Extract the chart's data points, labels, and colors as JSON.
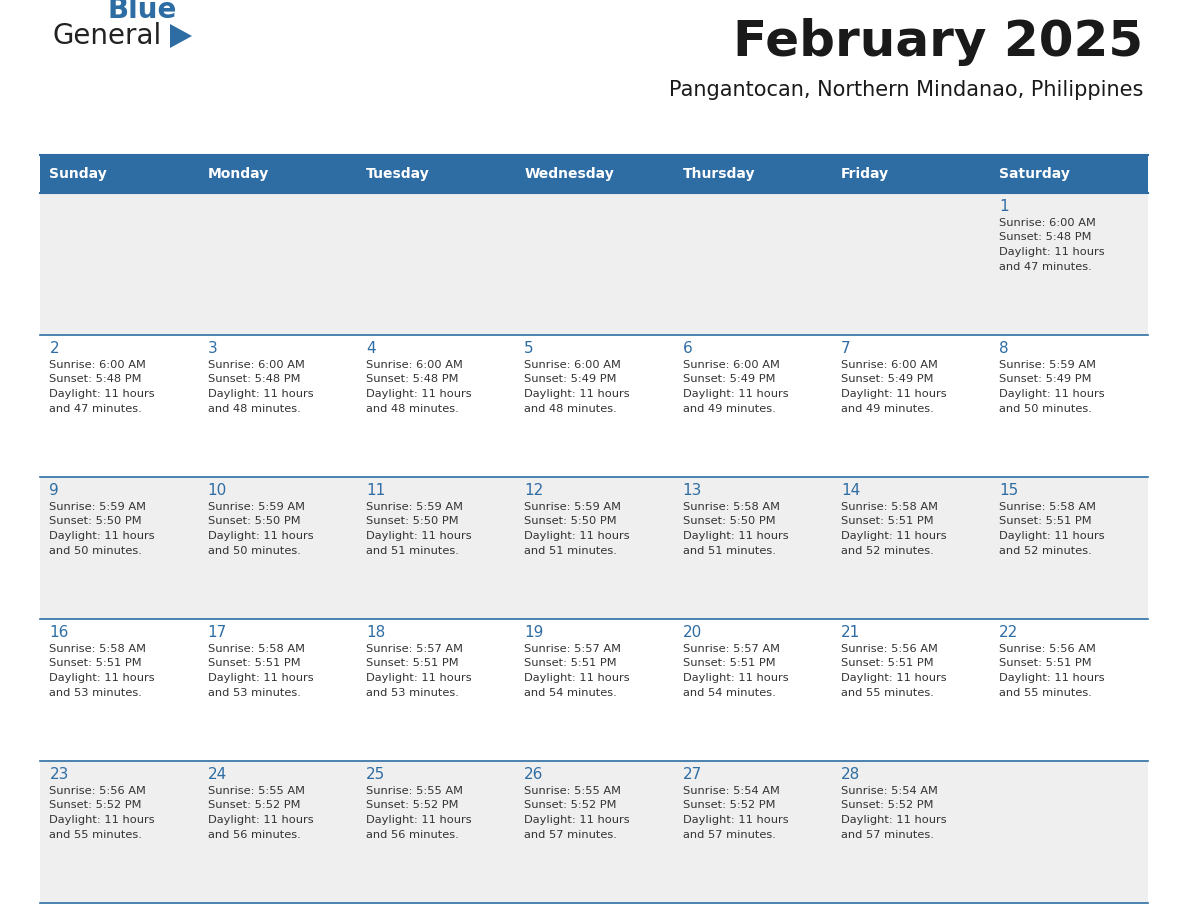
{
  "title": "February 2025",
  "subtitle": "Pangantocan, Northern Mindanao, Philippines",
  "header_bg": "#2E6DA4",
  "header_text_color": "#FFFFFF",
  "cell_bg_row0": "#EFEFEF",
  "cell_bg_row1": "#FFFFFF",
  "cell_bg_row2": "#EFEFEF",
  "cell_bg_row3": "#FFFFFF",
  "cell_bg_row4": "#EFEFEF",
  "border_color": "#2E6DA4",
  "text_color": "#333333",
  "day_number_color": "#2E6DA4",
  "day_names": [
    "Sunday",
    "Monday",
    "Tuesday",
    "Wednesday",
    "Thursday",
    "Friday",
    "Saturday"
  ],
  "days": [
    {
      "day": 1,
      "col": 6,
      "row": 0,
      "sunrise": "6:00 AM",
      "sunset": "5:48 PM",
      "daylight": "11 hours and 47 minutes."
    },
    {
      "day": 2,
      "col": 0,
      "row": 1,
      "sunrise": "6:00 AM",
      "sunset": "5:48 PM",
      "daylight": "11 hours and 47 minutes."
    },
    {
      "day": 3,
      "col": 1,
      "row": 1,
      "sunrise": "6:00 AM",
      "sunset": "5:48 PM",
      "daylight": "11 hours and 48 minutes."
    },
    {
      "day": 4,
      "col": 2,
      "row": 1,
      "sunrise": "6:00 AM",
      "sunset": "5:48 PM",
      "daylight": "11 hours and 48 minutes."
    },
    {
      "day": 5,
      "col": 3,
      "row": 1,
      "sunrise": "6:00 AM",
      "sunset": "5:49 PM",
      "daylight": "11 hours and 48 minutes."
    },
    {
      "day": 6,
      "col": 4,
      "row": 1,
      "sunrise": "6:00 AM",
      "sunset": "5:49 PM",
      "daylight": "11 hours and 49 minutes."
    },
    {
      "day": 7,
      "col": 5,
      "row": 1,
      "sunrise": "6:00 AM",
      "sunset": "5:49 PM",
      "daylight": "11 hours and 49 minutes."
    },
    {
      "day": 8,
      "col": 6,
      "row": 1,
      "sunrise": "5:59 AM",
      "sunset": "5:49 PM",
      "daylight": "11 hours and 50 minutes."
    },
    {
      "day": 9,
      "col": 0,
      "row": 2,
      "sunrise": "5:59 AM",
      "sunset": "5:50 PM",
      "daylight": "11 hours and 50 minutes."
    },
    {
      "day": 10,
      "col": 1,
      "row": 2,
      "sunrise": "5:59 AM",
      "sunset": "5:50 PM",
      "daylight": "11 hours and 50 minutes."
    },
    {
      "day": 11,
      "col": 2,
      "row": 2,
      "sunrise": "5:59 AM",
      "sunset": "5:50 PM",
      "daylight": "11 hours and 51 minutes."
    },
    {
      "day": 12,
      "col": 3,
      "row": 2,
      "sunrise": "5:59 AM",
      "sunset": "5:50 PM",
      "daylight": "11 hours and 51 minutes."
    },
    {
      "day": 13,
      "col": 4,
      "row": 2,
      "sunrise": "5:58 AM",
      "sunset": "5:50 PM",
      "daylight": "11 hours and 51 minutes."
    },
    {
      "day": 14,
      "col": 5,
      "row": 2,
      "sunrise": "5:58 AM",
      "sunset": "5:51 PM",
      "daylight": "11 hours and 52 minutes."
    },
    {
      "day": 15,
      "col": 6,
      "row": 2,
      "sunrise": "5:58 AM",
      "sunset": "5:51 PM",
      "daylight": "11 hours and 52 minutes."
    },
    {
      "day": 16,
      "col": 0,
      "row": 3,
      "sunrise": "5:58 AM",
      "sunset": "5:51 PM",
      "daylight": "11 hours and 53 minutes."
    },
    {
      "day": 17,
      "col": 1,
      "row": 3,
      "sunrise": "5:58 AM",
      "sunset": "5:51 PM",
      "daylight": "11 hours and 53 minutes."
    },
    {
      "day": 18,
      "col": 2,
      "row": 3,
      "sunrise": "5:57 AM",
      "sunset": "5:51 PM",
      "daylight": "11 hours and 53 minutes."
    },
    {
      "day": 19,
      "col": 3,
      "row": 3,
      "sunrise": "5:57 AM",
      "sunset": "5:51 PM",
      "daylight": "11 hours and 54 minutes."
    },
    {
      "day": 20,
      "col": 4,
      "row": 3,
      "sunrise": "5:57 AM",
      "sunset": "5:51 PM",
      "daylight": "11 hours and 54 minutes."
    },
    {
      "day": 21,
      "col": 5,
      "row": 3,
      "sunrise": "5:56 AM",
      "sunset": "5:51 PM",
      "daylight": "11 hours and 55 minutes."
    },
    {
      "day": 22,
      "col": 6,
      "row": 3,
      "sunrise": "5:56 AM",
      "sunset": "5:51 PM",
      "daylight": "11 hours and 55 minutes."
    },
    {
      "day": 23,
      "col": 0,
      "row": 4,
      "sunrise": "5:56 AM",
      "sunset": "5:52 PM",
      "daylight": "11 hours and 55 minutes."
    },
    {
      "day": 24,
      "col": 1,
      "row": 4,
      "sunrise": "5:55 AM",
      "sunset": "5:52 PM",
      "daylight": "11 hours and 56 minutes."
    },
    {
      "day": 25,
      "col": 2,
      "row": 4,
      "sunrise": "5:55 AM",
      "sunset": "5:52 PM",
      "daylight": "11 hours and 56 minutes."
    },
    {
      "day": 26,
      "col": 3,
      "row": 4,
      "sunrise": "5:55 AM",
      "sunset": "5:52 PM",
      "daylight": "11 hours and 57 minutes."
    },
    {
      "day": 27,
      "col": 4,
      "row": 4,
      "sunrise": "5:54 AM",
      "sunset": "5:52 PM",
      "daylight": "11 hours and 57 minutes."
    },
    {
      "day": 28,
      "col": 5,
      "row": 4,
      "sunrise": "5:54 AM",
      "sunset": "5:52 PM",
      "daylight": "11 hours and 57 minutes."
    }
  ],
  "num_rows": 5,
  "num_cols": 7
}
